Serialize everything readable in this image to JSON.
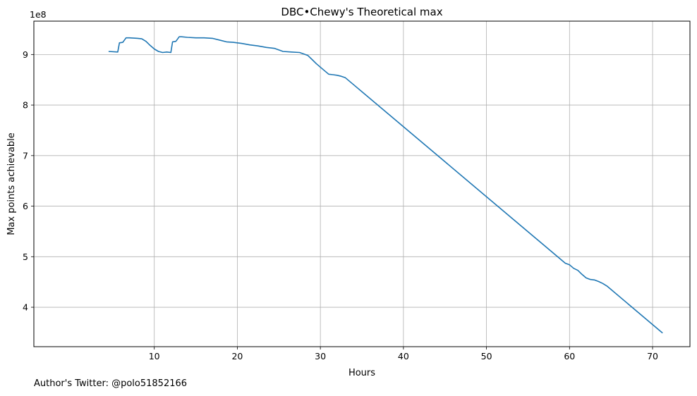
{
  "chart_data": {
    "type": "line",
    "title": "DBC•Chewy's Theoretical max",
    "xlabel": "Hours",
    "ylabel": "Max points achievable",
    "y_offset_text": "1e8",
    "xlim": [
      -4.5,
      74.5
    ],
    "ylim": [
      3.22,
      9.66
    ],
    "x_ticks": [
      10,
      20,
      30,
      40,
      50,
      60,
      70
    ],
    "y_ticks": [
      4,
      5,
      6,
      7,
      8,
      9
    ],
    "x_tick_labels": [
      "10",
      "20",
      "30",
      "40",
      "50",
      "60",
      "70"
    ],
    "y_tick_labels": [
      "4",
      "5",
      "6",
      "7",
      "8",
      "9"
    ],
    "grid": true,
    "series": [
      {
        "color": "#1f77b4",
        "x": [
          4.5,
          5.6,
          5.8,
          6.2,
          6.6,
          7.0,
          8.0,
          8.5,
          9.0,
          9.5,
          10.0,
          10.5,
          11.0,
          11.5,
          12.0,
          12.2,
          12.6,
          13.0,
          13.3,
          14.0,
          15.0,
          16.0,
          17.0,
          18.0,
          18.7,
          19.5,
          20.5,
          21.5,
          22.5,
          23.5,
          24.5,
          25.0,
          25.5,
          26.5,
          27.5,
          28.0,
          28.5,
          29.0,
          29.5,
          30.0,
          30.5,
          31.0,
          31.5,
          32.0,
          32.5,
          33.0,
          59.5,
          60.0,
          60.5,
          61.0,
          61.5,
          62.0,
          62.5,
          63.0,
          63.5,
          64.0,
          64.5,
          71.2
        ],
        "y": [
          9.06,
          9.05,
          9.23,
          9.24,
          9.33,
          9.33,
          9.32,
          9.31,
          9.26,
          9.18,
          9.11,
          9.06,
          9.04,
          9.05,
          9.04,
          9.25,
          9.26,
          9.35,
          9.35,
          9.34,
          9.33,
          9.33,
          9.32,
          9.28,
          9.25,
          9.24,
          9.22,
          9.19,
          9.17,
          9.14,
          9.12,
          9.09,
          9.06,
          9.05,
          9.04,
          9.01,
          8.98,
          8.9,
          8.82,
          8.75,
          8.68,
          8.61,
          8.6,
          8.59,
          8.57,
          8.54,
          4.87,
          4.84,
          4.77,
          4.73,
          4.65,
          4.58,
          4.55,
          4.54,
          4.51,
          4.47,
          4.42,
          3.49
        ]
      }
    ]
  },
  "footer": {
    "author_note": "Author's Twitter: @polo51852166"
  }
}
